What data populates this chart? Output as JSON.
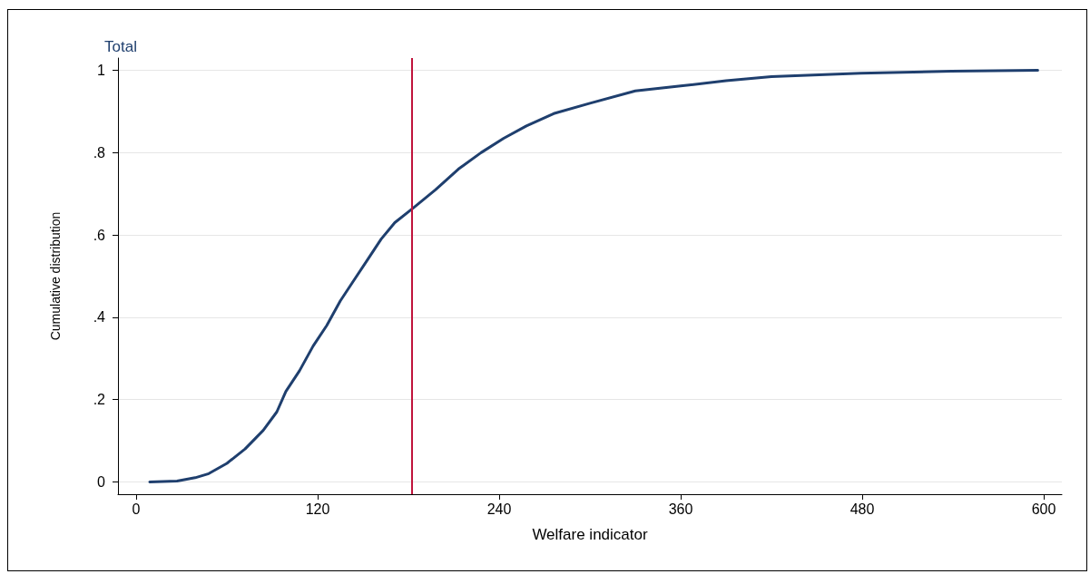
{
  "chart_data": {
    "type": "line",
    "title": "Total",
    "xlabel": "Welfare indicator",
    "ylabel": "Cumulative distribution",
    "x": [
      9,
      27,
      39,
      48,
      60,
      72,
      84,
      93,
      99,
      108,
      117,
      126,
      135,
      144,
      153,
      162,
      171,
      183,
      198,
      213,
      228,
      243,
      258,
      276,
      300,
      330,
      360,
      390,
      420,
      479,
      539,
      596
    ],
    "series": [
      {
        "color": "#1f3f6e",
        "values": [
          0,
          0.002,
          0.01,
          0.02,
          0.045,
          0.08,
          0.125,
          0.17,
          0.22,
          0.27,
          0.33,
          0.38,
          0.44,
          0.49,
          0.54,
          0.59,
          0.63,
          0.665,
          0.71,
          0.76,
          0.8,
          0.835,
          0.865,
          0.895,
          0.92,
          0.95,
          0.962,
          0.975,
          0.985,
          0.993,
          0.998,
          1
        ]
      }
    ],
    "xlim": [
      -12,
      612
    ],
    "xticks": [
      0,
      120,
      240,
      360,
      480,
      600
    ],
    "ylim": [
      -0.03,
      1.03
    ],
    "yticks": [
      0,
      {
        "value": 0.2,
        "label": ".2"
      },
      {
        "value": 0.4,
        "label": ".4"
      },
      {
        "value": 0.6,
        "label": ".6"
      },
      {
        "value": 0.8,
        "label": ".8"
      },
      1
    ],
    "ref_lines": [
      {
        "axis": "x",
        "value": 182,
        "color": "#c0143c"
      }
    ],
    "grid": "y",
    "marker": "none",
    "line_style": "solid"
  }
}
